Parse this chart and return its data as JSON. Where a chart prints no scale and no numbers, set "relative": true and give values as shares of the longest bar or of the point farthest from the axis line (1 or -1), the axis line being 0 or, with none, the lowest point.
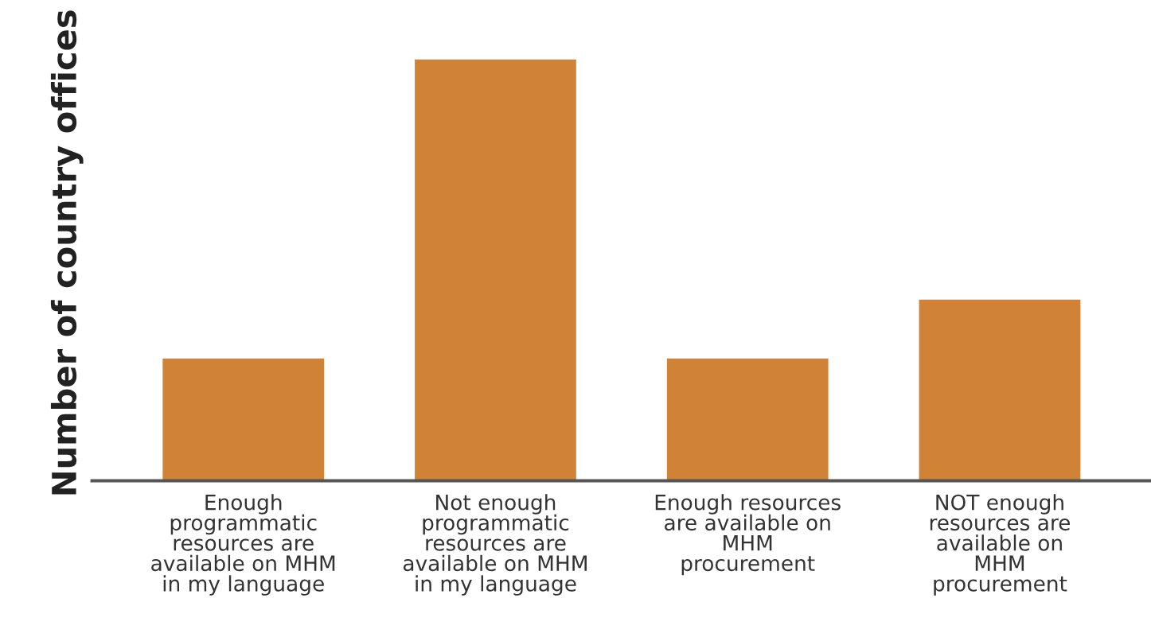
{
  "chart_data": {
    "type": "bar",
    "ylabel": "Number of country offices",
    "relative": true,
    "color": "#d08236",
    "categories": [
      "Enough\nprogrammatic\nresources are\navailable on MHM\nin my language",
      "Not enough\nprogrammatic\nresources are\navailable on MHM\nin my language",
      "Enough resources\nare available on\nMHM\nprocurement",
      "NOT enough\nresources are\navailable on\nMHM\nprocurement"
    ],
    "values": [
      0.29,
      1,
      0.29,
      0.43
    ]
  }
}
